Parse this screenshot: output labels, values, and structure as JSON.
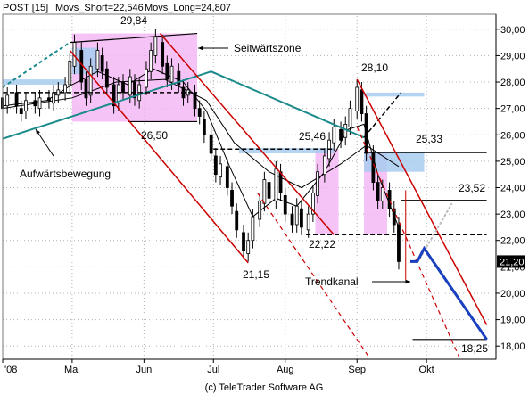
{
  "header": {
    "symbol": "POST [15]",
    "ma_short": "Movs_Short=22,546",
    "ma_long": "Movs_Long=24,807"
  },
  "footer": {
    "copyright": "(c) TeleTrader Software AG"
  },
  "chart_data": {
    "type": "candlestick",
    "x_axis": {
      "tick_labels": [
        "'08",
        "Mai",
        "Jun",
        "Jul",
        "Aug",
        "Sep",
        "Okt"
      ],
      "range": [
        "2008-04-01",
        "2008-10-31"
      ]
    },
    "y_axis": {
      "ylim": [
        17.5,
        30.5
      ],
      "tick_labels": [
        "18,00",
        "19,00",
        "20,00",
        "21,00",
        "22,00",
        "23,00",
        "24,00",
        "25,00",
        "26,00",
        "27,00",
        "28,00",
        "29,00",
        "30,00"
      ],
      "side": "right"
    },
    "last_price_label": "21,20",
    "last_price": 21.2,
    "annotations": [
      {
        "text": "29,84",
        "value": 29.84
      },
      {
        "text": "26,50",
        "value": 26.5
      },
      {
        "text": "21,15",
        "value": 21.15
      },
      {
        "text": "25,46",
        "value": 25.46
      },
      {
        "text": "22,22",
        "value": 22.22
      },
      {
        "text": "28,10",
        "value": 28.1
      },
      {
        "text": "25,33",
        "value": 25.33
      },
      {
        "text": "23,52",
        "value": 23.52
      },
      {
        "text": "18,25",
        "value": 18.25
      },
      {
        "text": "Seitwärtszone"
      },
      {
        "text": "Aufwärtsbewegung"
      },
      {
        "text": "Trendkanal"
      }
    ],
    "colors": {
      "candle_up": "#ffffff",
      "candle_down": "#000000",
      "trend_red": "#cc0000",
      "trend_teal": "#1a8a8a",
      "zone_pink": "#f4b8f4",
      "zone_blue": "#a8cdf0",
      "forecast_blue": "#1a3fbf",
      "grid": "#b0b0b0"
    },
    "prices": [
      [
        "2008-04-01",
        27.4,
        27.0
      ],
      [
        "2008-04-03",
        27.1,
        27.5
      ],
      [
        "2008-04-07",
        27.6,
        27.1
      ],
      [
        "2008-04-09",
        27.0,
        26.8
      ],
      [
        "2008-04-11",
        26.9,
        27.3
      ],
      [
        "2008-04-15",
        27.3,
        27.1
      ],
      [
        "2008-04-17",
        27.0,
        27.4
      ],
      [
        "2008-04-21",
        27.4,
        27.3
      ],
      [
        "2008-04-23",
        27.2,
        27.6
      ],
      [
        "2008-04-25",
        27.5,
        27.7
      ],
      [
        "2008-04-28",
        27.6,
        27.9
      ],
      [
        "2008-04-30",
        27.9,
        28.8
      ],
      [
        "2008-05-02",
        28.6,
        29.5
      ],
      [
        "2008-05-05",
        29.2,
        28.0
      ],
      [
        "2008-05-07",
        28.1,
        27.4
      ],
      [
        "2008-05-09",
        27.5,
        28.6
      ],
      [
        "2008-05-12",
        28.5,
        29.2
      ],
      [
        "2008-05-14",
        29.0,
        28.4
      ],
      [
        "2008-05-16",
        28.5,
        27.8
      ],
      [
        "2008-05-19",
        27.9,
        27.1
      ],
      [
        "2008-05-21",
        27.2,
        27.9
      ],
      [
        "2008-05-23",
        28.0,
        27.6
      ],
      [
        "2008-05-26",
        27.5,
        28.2
      ],
      [
        "2008-05-28",
        28.0,
        27.4
      ],
      [
        "2008-05-30",
        27.3,
        27.9
      ],
      [
        "2008-06-02",
        27.8,
        28.5
      ],
      [
        "2008-06-04",
        28.4,
        29.2
      ],
      [
        "2008-06-06",
        29.0,
        29.7
      ],
      [
        "2008-06-09",
        29.5,
        28.6
      ],
      [
        "2008-06-11",
        28.7,
        28.1
      ],
      [
        "2008-06-13",
        28.0,
        28.6
      ],
      [
        "2008-06-16",
        28.4,
        27.9
      ],
      [
        "2008-06-18",
        27.8,
        27.4
      ],
      [
        "2008-06-20",
        27.5,
        27.7
      ],
      [
        "2008-06-23",
        27.6,
        27.0
      ],
      [
        "2008-06-25",
        27.0,
        26.7
      ],
      [
        "2008-06-27",
        26.6,
        26.0
      ],
      [
        "2008-06-30",
        26.0,
        25.3
      ],
      [
        "2008-07-02",
        25.2,
        24.5
      ],
      [
        "2008-07-04",
        24.4,
        24.9
      ],
      [
        "2008-07-07",
        24.8,
        24.0
      ],
      [
        "2008-07-09",
        23.9,
        23.3
      ],
      [
        "2008-07-11",
        23.1,
        22.4
      ],
      [
        "2008-07-14",
        22.3,
        21.6
      ],
      [
        "2008-07-16",
        21.5,
        22.0
      ],
      [
        "2008-07-18",
        22.0,
        22.9
      ],
      [
        "2008-07-21",
        22.8,
        23.5
      ],
      [
        "2008-07-23",
        23.4,
        24.3
      ],
      [
        "2008-07-25",
        24.2,
        23.6
      ],
      [
        "2008-07-28",
        23.5,
        24.7
      ],
      [
        "2008-07-30",
        24.6,
        23.8
      ],
      [
        "2008-08-01",
        23.7,
        23.0
      ],
      [
        "2008-08-04",
        23.0,
        22.6
      ],
      [
        "2008-08-06",
        22.6,
        23.3
      ],
      [
        "2008-08-08",
        23.2,
        22.5
      ],
      [
        "2008-08-11",
        22.4,
        23.0
      ],
      [
        "2008-08-13",
        23.0,
        23.8
      ],
      [
        "2008-08-15",
        23.7,
        24.6
      ],
      [
        "2008-08-18",
        24.5,
        25.2
      ],
      [
        "2008-08-20",
        25.1,
        25.8
      ],
      [
        "2008-08-22",
        25.7,
        26.3
      ],
      [
        "2008-08-25",
        26.2,
        25.8
      ],
      [
        "2008-08-27",
        25.9,
        26.4
      ],
      [
        "2008-08-29",
        26.3,
        27.0
      ],
      [
        "2008-09-01",
        26.9,
        27.8
      ],
      [
        "2008-09-03",
        27.7,
        26.8
      ],
      [
        "2008-09-05",
        26.8,
        25.3
      ],
      [
        "2008-09-08",
        25.3,
        24.2
      ],
      [
        "2008-09-10",
        24.2,
        23.5
      ],
      [
        "2008-09-12",
        23.5,
        24.0
      ],
      [
        "2008-09-15",
        23.9,
        23.2
      ],
      [
        "2008-09-17",
        23.2,
        22.6
      ],
      [
        "2008-09-19",
        22.6,
        21.2
      ]
    ],
    "ma_short_values": [
      [
        "2008-04-01",
        27.1
      ],
      [
        "2008-04-20",
        27.3
      ],
      [
        "2008-05-01",
        27.9
      ],
      [
        "2008-05-12",
        28.4
      ],
      [
        "2008-05-25",
        27.9
      ],
      [
        "2008-06-05",
        28.5
      ],
      [
        "2008-06-18",
        28.0
      ],
      [
        "2008-06-28",
        26.9
      ],
      [
        "2008-07-08",
        24.8
      ],
      [
        "2008-07-18",
        22.9
      ],
      [
        "2008-07-28",
        23.6
      ],
      [
        "2008-08-06",
        23.3
      ],
      [
        "2008-08-18",
        24.6
      ],
      [
        "2008-08-28",
        26.2
      ],
      [
        "2008-09-04",
        26.4
      ],
      [
        "2008-09-10",
        24.5
      ],
      [
        "2008-09-19",
        22.5
      ]
    ],
    "ma_long_values": [
      [
        "2008-04-01",
        27.0
      ],
      [
        "2008-05-01",
        27.4
      ],
      [
        "2008-05-20",
        28.0
      ],
      [
        "2008-06-10",
        28.1
      ],
      [
        "2008-06-28",
        27.3
      ],
      [
        "2008-07-10",
        25.7
      ],
      [
        "2008-07-25",
        24.6
      ],
      [
        "2008-08-08",
        24.0
      ],
      [
        "2008-08-25",
        24.9
      ],
      [
        "2008-09-05",
        25.6
      ],
      [
        "2008-09-19",
        24.8
      ]
    ],
    "forecast_path": [
      [
        "2008-09-24",
        21.2
      ],
      [
        "2008-09-27",
        21.2
      ],
      [
        "2008-09-30",
        21.7
      ],
      [
        "2008-10-27",
        18.25
      ]
    ]
  }
}
